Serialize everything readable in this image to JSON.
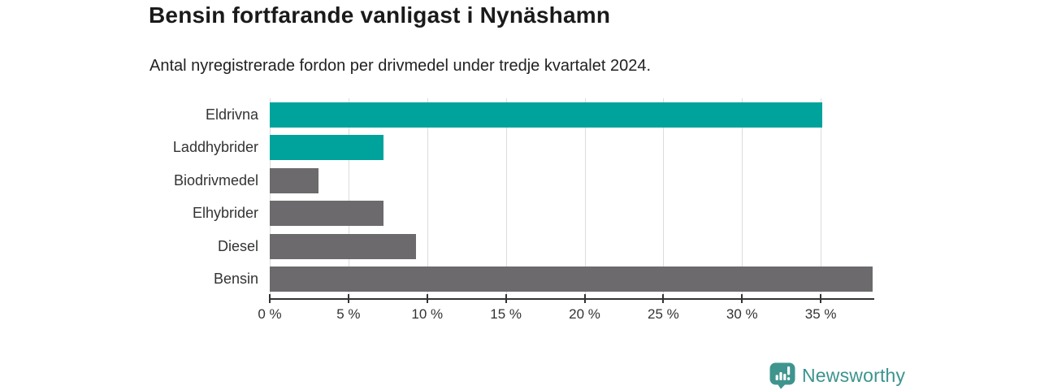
{
  "header": {
    "title": "Bensin fortfarande vanligast i Nynäshamn",
    "subtitle": "Antal nyregistrerade fordon per drivmedel under tredje kvartalet 2024."
  },
  "chart_data": {
    "type": "bar",
    "orientation": "horizontal",
    "categories": [
      "Eldrivna",
      "Laddhybrider",
      "Biodrivmedel",
      "Elhybrider",
      "Diesel",
      "Bensin"
    ],
    "values": [
      35.1,
      7.2,
      3.1,
      7.2,
      9.3,
      38.3
    ],
    "unit": "%",
    "bar_colors": [
      "#00a39b",
      "#00a39b",
      "#6c6a6d",
      "#6c6a6d",
      "#6c6a6d",
      "#6c6a6d"
    ],
    "x_ticks": [
      0,
      5,
      10,
      15,
      20,
      25,
      30,
      35
    ],
    "x_tick_labels": [
      "0 %",
      "5 %",
      "10 %",
      "15 %",
      "20 %",
      "25 %",
      "30 %",
      "35 %"
    ],
    "xlim": [
      0,
      38.4
    ],
    "grid": true,
    "legend": "none",
    "gridline_color": "#dcdcdc",
    "axis_line_color": "#333333"
  },
  "branding": {
    "logo_text": "Newsworthy",
    "logo_color": "#3b948e",
    "logo_icon": "newsworthy-bubble-barchart-icon"
  },
  "colors": {
    "accent_teal": "#00a39b",
    "neutral_gray": "#6c6a6d",
    "background": "#ffffff"
  }
}
